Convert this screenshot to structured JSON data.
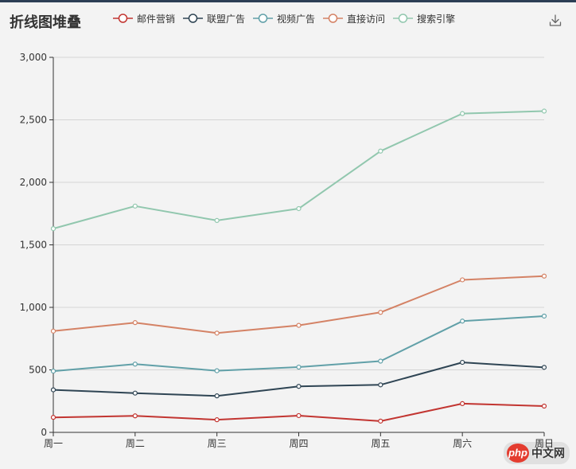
{
  "header": {
    "title": "折线图堆叠"
  },
  "toolbar": {
    "download_icon": "download-icon"
  },
  "legend": [
    {
      "name": "邮件营销",
      "color": "#c23531"
    },
    {
      "name": "联盟广告",
      "color": "#2f4554"
    },
    {
      "name": "视频广告",
      "color": "#61a0a8"
    },
    {
      "name": "直接访问",
      "color": "#d48265"
    },
    {
      "name": "搜索引擎",
      "color": "#91c7ae"
    }
  ],
  "watermark": {
    "logo_text": "php",
    "site_text": "中文网"
  },
  "chart_data": {
    "type": "line",
    "stacked": true,
    "title": "折线图堆叠",
    "categories": [
      "周一",
      "周二",
      "周三",
      "周四",
      "周五",
      "周六",
      "周日"
    ],
    "ylim": [
      0,
      3000
    ],
    "yticks": [
      "0",
      "500",
      "1,000",
      "1,500",
      "2,000",
      "2,500",
      "3,000"
    ],
    "ytick_values": [
      0,
      500,
      1000,
      1500,
      2000,
      2500,
      3000
    ],
    "grid": true,
    "legend_position": "top",
    "series": [
      {
        "name": "邮件营销",
        "color": "#c23531",
        "values": [
          120,
          132,
          101,
          134,
          90,
          230,
          210
        ]
      },
      {
        "name": "联盟广告",
        "color": "#2f4554",
        "values": [
          220,
          182,
          191,
          234,
          290,
          330,
          310
        ]
      },
      {
        "name": "视频广告",
        "color": "#61a0a8",
        "values": [
          150,
          232,
          201,
          154,
          190,
          330,
          410
        ]
      },
      {
        "name": "直接访问",
        "color": "#d48265",
        "values": [
          320,
          332,
          301,
          334,
          390,
          330,
          320
        ]
      },
      {
        "name": "搜索引擎",
        "color": "#91c7ae",
        "values": [
          820,
          932,
          901,
          934,
          1290,
          1330,
          1320
        ]
      }
    ]
  }
}
